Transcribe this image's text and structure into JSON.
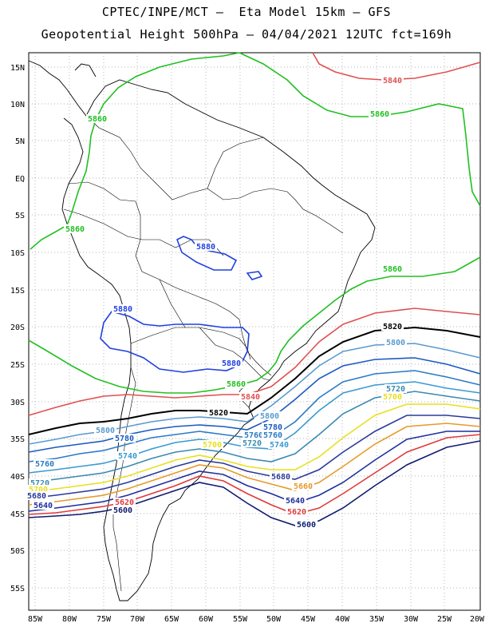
{
  "title_line1": "CPTEC/INPE/MCT –  Eta Model 15km – GFS",
  "title_line2": "Geopotential Height 500hPa – 04/04/2021 12UTC fct=169h",
  "lat_labels": [
    "15N",
    "10N",
    "5N",
    "EQ",
    "5S",
    "10S",
    "15S",
    "20S",
    "25S",
    "30S",
    "35S",
    "40S",
    "45S",
    "50S",
    "55S"
  ],
  "lon_labels": [
    "85W",
    "80W",
    "75W",
    "70W",
    "65W",
    "60W",
    "55W",
    "50W",
    "45W",
    "40W",
    "35W",
    "30W",
    "25W",
    "20W"
  ],
  "contour_colors": {
    "5600": "#101c6e",
    "5620": "#e03a3a",
    "5640": "#1f2f9e",
    "5660": "#e69a2a",
    "5680": "#2a3a9a",
    "5700": "#e8e020",
    "5720": "#3a8ab0",
    "5740": "#3a9ad0",
    "5760": "#2a7ac8",
    "5780": "#1a5ac0",
    "5800": "#5a9ad0",
    "5820": "#000000",
    "5840": "#e05050",
    "5860": "#20c020",
    "5880": "#2040e0"
  },
  "contour_labels": [
    {
      "text": "5840",
      "color": "#e05050"
    },
    {
      "text": "5860",
      "color": "#20c020"
    },
    {
      "text": "5860",
      "color": "#20c020"
    },
    {
      "text": "5860",
      "color": "#20c020"
    },
    {
      "text": "5860",
      "color": "#20c020"
    },
    {
      "text": "5880",
      "color": "#2040e0"
    },
    {
      "text": "5880",
      "color": "#2040e0"
    },
    {
      "text": "5880",
      "color": "#2040e0"
    },
    {
      "text": "5860",
      "color": "#20c020"
    },
    {
      "text": "5840",
      "color": "#e05050"
    },
    {
      "text": "5820",
      "color": "#000000"
    },
    {
      "text": "5820",
      "color": "#000000"
    },
    {
      "text": "5800",
      "color": "#5a9ad0"
    },
    {
      "text": "5800",
      "color": "#5a9ad0"
    },
    {
      "text": "5800",
      "color": "#5a9ad0"
    },
    {
      "text": "5780",
      "color": "#1a5ac0"
    },
    {
      "text": "5780",
      "color": "#1a5ac0"
    },
    {
      "text": "5760",
      "color": "#2a7ac8"
    },
    {
      "text": "5760",
      "color": "#2a7ac8"
    },
    {
      "text": "5760",
      "color": "#2a7ac8"
    },
    {
      "text": "5740",
      "color": "#3a9ad0"
    },
    {
      "text": "5740",
      "color": "#3a9ad0"
    },
    {
      "text": "5720",
      "color": "#3a8ab0"
    },
    {
      "text": "5720",
      "color": "#3a8ab0"
    },
    {
      "text": "5720",
      "color": "#3a8ab0"
    },
    {
      "text": "5700",
      "color": "#e8e020"
    },
    {
      "text": "5700",
      "color": "#e8e020"
    },
    {
      "text": "5700",
      "color": "#e8e020"
    },
    {
      "text": "5680",
      "color": "#2a3a9a"
    },
    {
      "text": "5680",
      "color": "#2a3a9a"
    },
    {
      "text": "5660",
      "color": "#e69a2a"
    },
    {
      "text": "5640",
      "color": "#1f2f9e"
    },
    {
      "text": "5640",
      "color": "#1f2f9e"
    },
    {
      "text": "5620",
      "color": "#e03a3a"
    },
    {
      "text": "5620",
      "color": "#e03a3a"
    },
    {
      "text": "5600",
      "color": "#101c6e"
    },
    {
      "text": "5600",
      "color": "#101c6e"
    }
  ]
}
